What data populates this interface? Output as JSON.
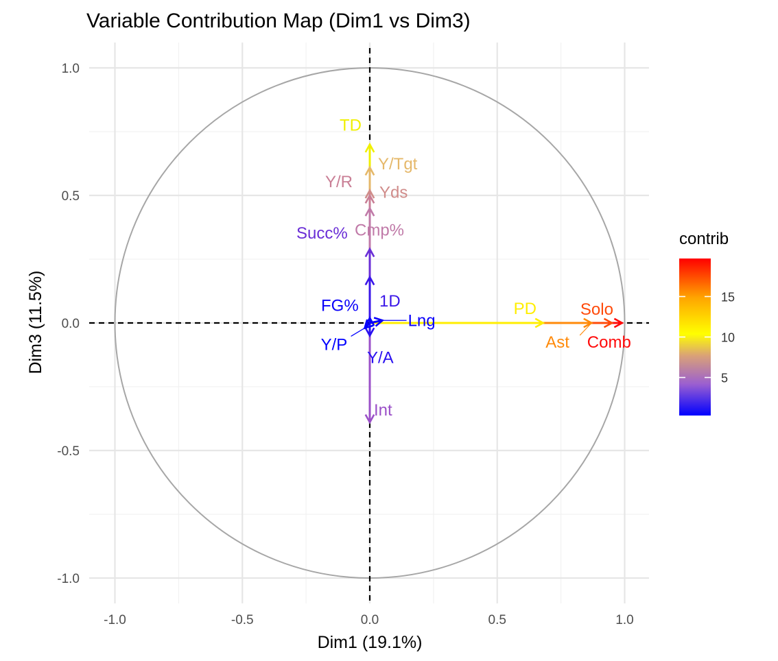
{
  "chart_data": {
    "type": "scatter",
    "subtype": "pca-variable-correlation-circle",
    "title": "Variable Contribution Map (Dim1 vs Dim3)",
    "xlabel": "Dim1 (19.1%)",
    "ylabel": "Dim3 (11.5%)",
    "xlim": [
      -1.1,
      1.1
    ],
    "ylim": [
      -1.1,
      1.1
    ],
    "x_ticks": [
      -1.0,
      -0.5,
      0.0,
      0.5,
      1.0
    ],
    "y_ticks": [
      -1.0,
      -0.5,
      0.0,
      0.5,
      1.0
    ],
    "x_tick_labels": [
      "-1.0",
      "-0.5",
      "0.0",
      "0.5",
      "1.0"
    ],
    "y_tick_labels": [
      "-1.0",
      "-0.5",
      "0.0",
      "0.5",
      "1.0"
    ],
    "grid": true,
    "unit_circle": true,
    "reference_lines": {
      "x": 0,
      "y": 0,
      "style": "dashed"
    },
    "legend": {
      "title": "contrib",
      "placement": "right",
      "type": "colorbar",
      "range": [
        0.3,
        19.7
      ],
      "ticks": [
        5,
        10,
        15
      ],
      "tick_labels": [
        "5",
        "10",
        "15"
      ],
      "colors": [
        "#0000FF",
        "#9B5FD0",
        "#D9A178",
        "#FFFF00",
        "#FFA500",
        "#FF0000"
      ]
    },
    "variables": [
      {
        "name": "TD",
        "x": 0.0,
        "y": 0.7,
        "contrib": 10.5,
        "color": "#F0F000"
      },
      {
        "name": "Y/Tgt",
        "x": 0.0,
        "y": 0.61,
        "contrib": 7.5,
        "color": "#E5B86A"
      },
      {
        "name": "Yds",
        "x": 0.0,
        "y": 0.52,
        "contrib": 6.0,
        "color": "#D08C8A"
      },
      {
        "name": "Y/R",
        "x": 0.0,
        "y": 0.5,
        "contrib": 5.8,
        "color": "#C97E95"
      },
      {
        "name": "Cmp%",
        "x": 0.0,
        "y": 0.45,
        "contrib": 5.2,
        "color": "#C07AA8"
      },
      {
        "name": "Succ%",
        "x": 0.0,
        "y": 0.29,
        "contrib": 2.5,
        "color": "#6A2ED6"
      },
      {
        "name": "1D",
        "x": 0.0,
        "y": 0.18,
        "contrib": 1.2,
        "color": "#3A16E8"
      },
      {
        "name": "FG%",
        "x": 0.0,
        "y": 0.02,
        "contrib": 0.4,
        "color": "#0A00FA"
      },
      {
        "name": "Lng",
        "x": 0.05,
        "y": 0.01,
        "contrib": 0.4,
        "color": "#0A00FA"
      },
      {
        "name": "Y/P",
        "x": -0.02,
        "y": -0.02,
        "contrib": 0.3,
        "color": "#0000FF"
      },
      {
        "name": "Y/A",
        "x": 0.0,
        "y": -0.05,
        "contrib": 0.6,
        "color": "#2A10F0"
      },
      {
        "name": "Int",
        "x": 0.0,
        "y": -0.39,
        "contrib": 4.0,
        "color": "#9B50C8"
      },
      {
        "name": "PD",
        "x": 0.68,
        "y": 0.0,
        "contrib": 10.0,
        "color": "#FFEE00"
      },
      {
        "name": "Ast",
        "x": 0.87,
        "y": 0.0,
        "contrib": 15.0,
        "color": "#FF8A0A"
      },
      {
        "name": "Solo",
        "x": 0.95,
        "y": 0.0,
        "contrib": 17.5,
        "color": "#FF4A0A"
      },
      {
        "name": "Comb",
        "x": 0.99,
        "y": 0.0,
        "contrib": 19.5,
        "color": "#FF0A0A"
      }
    ]
  }
}
